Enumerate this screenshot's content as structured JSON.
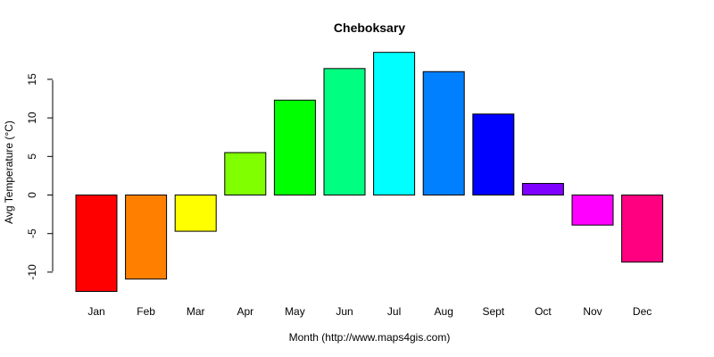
{
  "chart_data": {
    "type": "bar",
    "title": "Cheboksary",
    "xlabel": "Month (http://www.maps4gis.com)",
    "ylabel": "Avg Temperature (°C)",
    "categories": [
      "Jan",
      "Feb",
      "Mar",
      "Apr",
      "May",
      "Jun",
      "Jul",
      "Aug",
      "Sept",
      "Oct",
      "Nov",
      "Dec"
    ],
    "values": [
      -12.5,
      -10.9,
      -4.7,
      5.5,
      12.3,
      16.4,
      18.5,
      16.0,
      10.5,
      1.5,
      -3.9,
      -8.7
    ],
    "colors": [
      "#FF0000",
      "#FF8000",
      "#FFFF00",
      "#80FF00",
      "#00FF00",
      "#00FF80",
      "#00FFFF",
      "#0080FF",
      "#0000FF",
      "#8000FF",
      "#FF00FF",
      "#FF0080"
    ],
    "yticks": [
      -10,
      -5,
      0,
      5,
      10,
      15
    ],
    "ylim": [
      -12.5,
      18.5
    ],
    "grid": false,
    "legend": "none"
  }
}
